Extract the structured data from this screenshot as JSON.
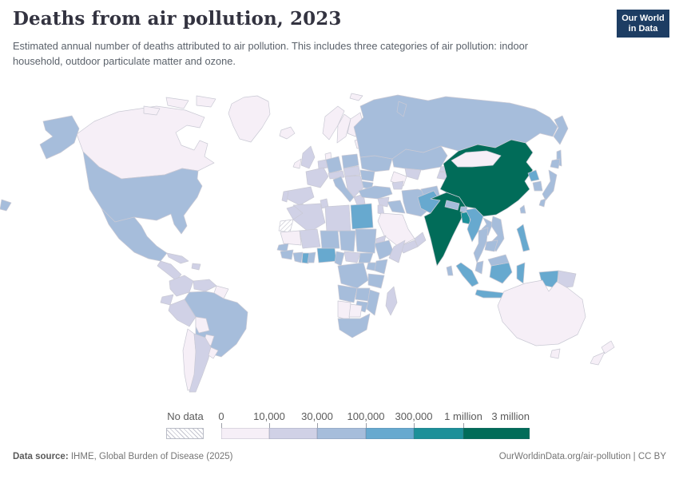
{
  "header": {
    "title": "Deaths from air pollution, 2023",
    "subtitle": "Estimated annual number of deaths attributed to air pollution. This includes three categories of air pollution: indoor household, outdoor particulate matter and ozone.",
    "logo_line1": "Our World",
    "logo_line2": "in Data",
    "logo_bg": "#1d3d63",
    "logo_bar_color": "#cf3e36"
  },
  "legend": {
    "no_data_label": "No data"
  },
  "footer": {
    "source_label": "Data source:",
    "source_text": " IHME, Global Burden of Disease (2025)",
    "credit": "OurWorldinData.org/air-pollution | CC BY"
  },
  "chart_data": {
    "type": "heatmap",
    "subtype": "world-choropleth-map",
    "title": "Deaths from air pollution, 2023",
    "unit": "deaths per year",
    "legend_position": "bottom",
    "bins": {
      "thresholds": [
        "0",
        "10,000",
        "30,000",
        "100,000",
        "300,000",
        "1 million",
        "3 million"
      ],
      "ranges": [
        "0–10,000",
        "10,000–30,000",
        "30,000–100,000",
        "100,000–300,000",
        "300,000–1 million",
        "1 million–3 million"
      ],
      "colors": [
        "#f6eff7",
        "#d0d1e6",
        "#a6bddb",
        "#67a9cf",
        "#1c9099",
        "#016c59"
      ],
      "no_data_style": "diagonal-hatch"
    },
    "countries": {
      "Canada": 0,
      "Greenland": 0,
      "Iceland": 0,
      "United States": 2,
      "Mexico": 2,
      "Central America": 1,
      "Cuba": 1,
      "Hispaniola": 1,
      "Colombia": 1,
      "Venezuela": 1,
      "Guyana & Suriname": 0,
      "Ecuador": 1,
      "Peru": 1,
      "Brazil": 2,
      "Bolivia": 0,
      "Paraguay": 0,
      "Chile": 0,
      "Argentina": 1,
      "Uruguay": 0,
      "United Kingdom": 1,
      "Ireland": 0,
      "Norway": 0,
      "Sweden": 0,
      "Finland": 0,
      "Denmark": 0,
      "Germany": 2,
      "Netherlands & Belgium": 1,
      "France": 1,
      "Spain": 1,
      "Portugal": 1,
      "Italy": 2,
      "Switzerland & Austria": 1,
      "Poland": 2,
      "Czechia & Hungary": 1,
      "Balkans": 1,
      "Greece": 1,
      "Romania": 2,
      "Bulgaria": 2,
      "Belarus": 1,
      "Ukraine": 2,
      "Baltic states": 0,
      "Svalbard": 0,
      "Russia": 2,
      "Kazakhstan": 2,
      "Uzbekistan": 1,
      "Turkmenistan": 0,
      "Kyrgyzstan": 1,
      "Tajikistan": 1,
      "Caucasus": 1,
      "Turkey": 2,
      "Syria": 1,
      "Iraq": 2,
      "Iran": 2,
      "Jordan & Israel": 1,
      "Saudi Arabia": 0,
      "Yemen": 1,
      "Oman": 1,
      "Morocco": 1,
      "Western Sahara": "no_data",
      "Algeria": 1,
      "Tunisia": 1,
      "Libya": 1,
      "Egypt": 3,
      "Mauritania": 0,
      "Mali": 1,
      "Niger": 2,
      "Chad": 2,
      "Sudan": 2,
      "Eritrea": 1,
      "Ethiopia": 2,
      "Somalia": 1,
      "Senegal": 2,
      "Guinea": 2,
      "Cote d'Ivoire": 2,
      "Ghana": 3,
      "Benin & Togo": 2,
      "Nigeria": 3,
      "Cameroon": 2,
      "Central African Republic": 1,
      "South Sudan": 2,
      "DR Congo": 2,
      "Uganda": 2,
      "Kenya": 2,
      "Tanzania": 2,
      "Angola": 2,
      "Zambia": 2,
      "Mozambique": 2,
      "Zimbabwe": 2,
      "Namibia": 0,
      "Botswana": 0,
      "South Africa": 2,
      "Madagascar": 1,
      "Afghanistan": 2,
      "Pakistan": 3,
      "India": 5,
      "Nepal": 2,
      "Bhutan": 2,
      "Bangladesh": 4,
      "Sri Lanka": 2,
      "China": 5,
      "Mongolia": 0,
      "North Korea": 3,
      "South Korea": 2,
      "Japan": 2,
      "Taiwan": 2,
      "Myanmar": 3,
      "Thailand": 2,
      "Laos": 2,
      "Vietnam": 2,
      "Cambodia": 2,
      "Malaysia": 2,
      "Indonesia": 3,
      "Philippines": 3,
      "Papua New Guinea": 1,
      "Australia": 0,
      "New Zealand": 0
    }
  }
}
